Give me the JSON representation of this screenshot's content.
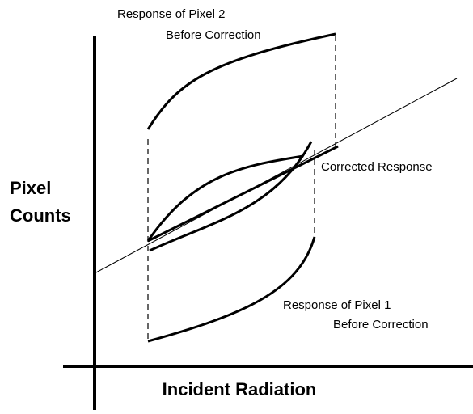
{
  "pixel2_label": [
    "Response of Pixel 2",
    "Before Correction"
  ],
  "y_axis_label": [
    "Pixel",
    "Counts"
  ],
  "corrected_label": "Corrected Response",
  "pixel1_label": [
    "Response of Pixel 1",
    "Before Correction"
  ],
  "x_axis_label": "Incident Radiation"
}
